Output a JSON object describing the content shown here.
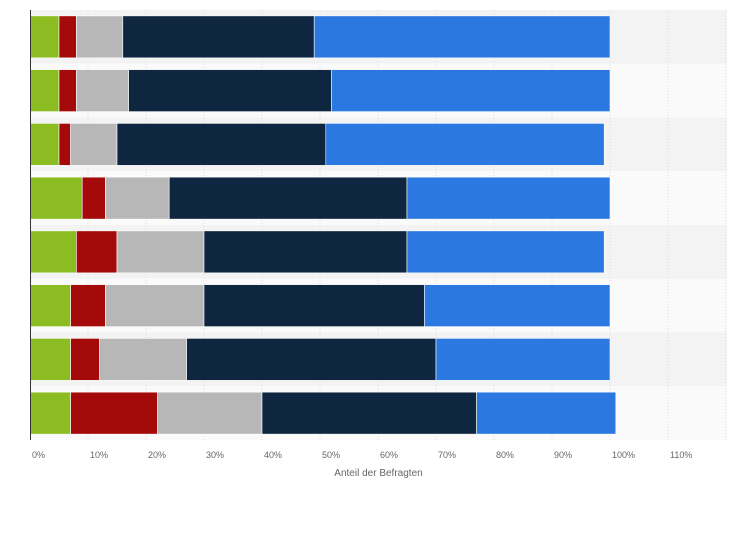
{
  "chart_data": {
    "type": "bar",
    "orientation": "horizontal",
    "stacked": true,
    "xlabel": "Anteil der Befragten",
    "xlim": [
      0,
      120
    ],
    "x_ticks": [
      0,
      10,
      20,
      30,
      40,
      50,
      60,
      70,
      80,
      90,
      100,
      110
    ],
    "x_tick_labels": [
      "0%",
      "10%",
      "20%",
      "30%",
      "40%",
      "50%",
      "60%",
      "70%",
      "80%",
      "90%",
      "100%",
      "110%"
    ],
    "grid": true,
    "bar_count": 8,
    "series": [
      {
        "color": "#8bbc21",
        "values": [
          5,
          5,
          5,
          9,
          8,
          7,
          7,
          7
        ]
      },
      {
        "color": "#a50a0a",
        "values": [
          3,
          3,
          2,
          4,
          7,
          6,
          5,
          15
        ]
      },
      {
        "color": "#b7b7b7",
        "values": [
          8,
          9,
          8,
          11,
          15,
          17,
          15,
          18
        ]
      },
      {
        "color": "#0f2640",
        "values": [
          33,
          35,
          36,
          41,
          35,
          38,
          43,
          37
        ]
      },
      {
        "color": "#2a78e0",
        "values": [
          51,
          48,
          48,
          35,
          34,
          32,
          30,
          24
        ]
      }
    ],
    "band_colors": [
      "#f3f3f3",
      "#fafafa"
    ]
  }
}
